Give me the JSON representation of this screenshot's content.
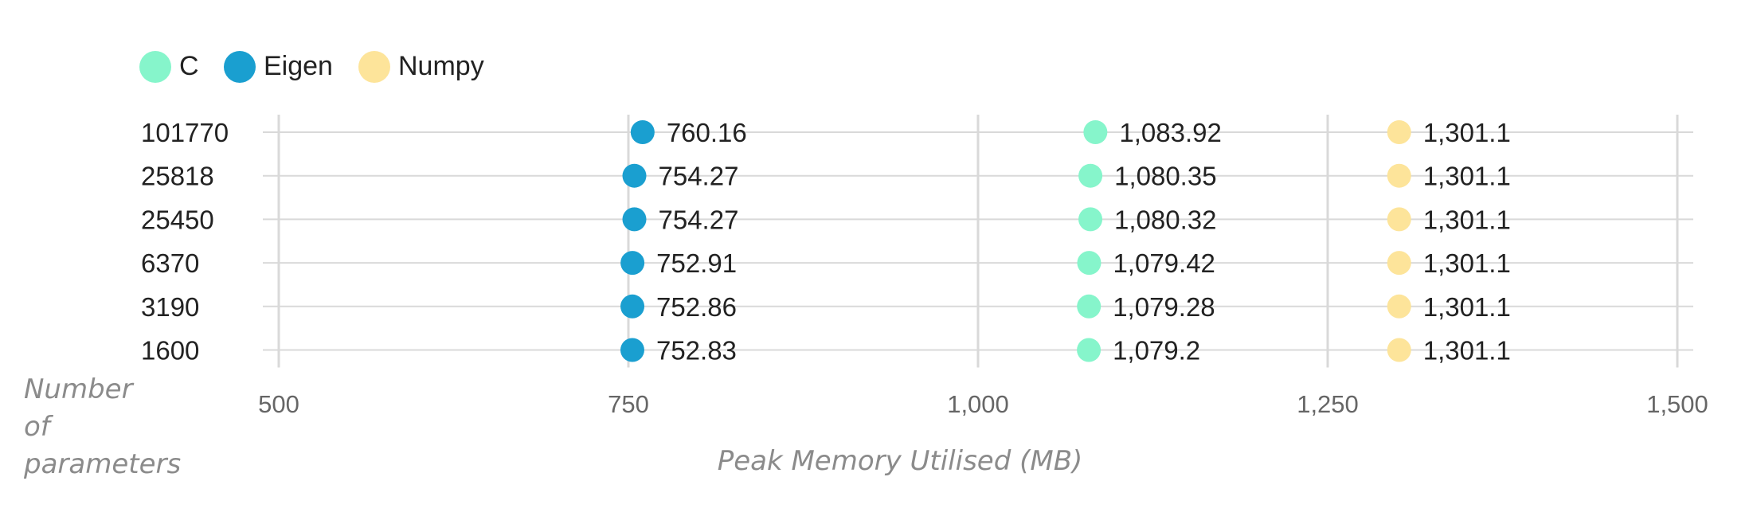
{
  "chart_data": {
    "type": "scatter",
    "categories": [
      "101770",
      "25818",
      "25450",
      "6370",
      "3190",
      "1600"
    ],
    "series": [
      {
        "name": "C",
        "color": "#86f5cb",
        "values": [
          1083.92,
          1080.35,
          1080.32,
          1079.42,
          1079.28,
          1079.2
        ],
        "labels": [
          "1,083.92",
          "1,080.35",
          "1,080.32",
          "1,079.42",
          "1,079.28",
          "1,079.2"
        ]
      },
      {
        "name": "Eigen",
        "color": "#1a9fd0",
        "values": [
          760.16,
          754.27,
          754.27,
          752.91,
          752.86,
          752.83
        ],
        "labels": [
          "760.16",
          "754.27",
          "754.27",
          "752.91",
          "752.86",
          "752.83"
        ]
      },
      {
        "name": "Numpy",
        "color": "#fde49a",
        "values": [
          1301.1,
          1301.1,
          1301.1,
          1301.1,
          1301.1,
          1301.1
        ],
        "labels": [
          "1,301.1",
          "1,301.1",
          "1,301.1",
          "1,301.1",
          "1,301.1",
          "1,301.1"
        ]
      }
    ],
    "xlabel": "Peak Memory Utilised (MB)",
    "ylabel": "Number of parameters",
    "ylabel_lines": [
      "Number",
      "of",
      "parameters"
    ],
    "xlim": [
      500,
      1500
    ],
    "xticks": [
      500,
      750,
      1000,
      1250,
      1500
    ],
    "xtick_labels": [
      "500",
      "750",
      "1,000",
      "1,250",
      "1,500"
    ],
    "grid": true,
    "legend_position": "top-left"
  },
  "colors": {
    "grid": "#d9d9d9",
    "text": "#222222",
    "muted_text": "#8b8b8b"
  }
}
